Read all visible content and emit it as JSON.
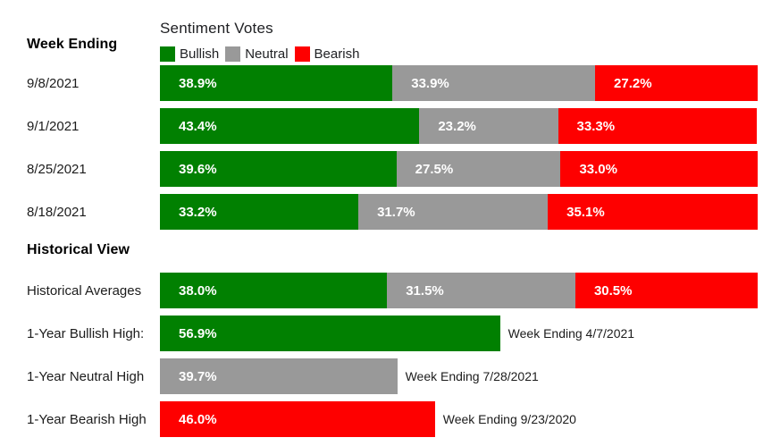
{
  "page": {
    "title": "Sentiment Votes",
    "week_ending_heading": "Week Ending",
    "historical_heading": "Historical View"
  },
  "colors": {
    "bullish": "#018001",
    "neutral": "#999999",
    "bearish": "#fe0000",
    "bar_text": "#ffffff",
    "text": "#1c1c1c"
  },
  "legend": {
    "items": [
      {
        "label": "Bullish",
        "color": "#018001"
      },
      {
        "label": "Neutral",
        "color": "#999999"
      },
      {
        "label": "Bearish",
        "color": "#fe0000"
      }
    ]
  },
  "chart_data": {
    "type": "bar",
    "orientation": "horizontal",
    "stacked": true,
    "title": "Sentiment Votes",
    "series": [
      "Bullish",
      "Neutral",
      "Bearish"
    ],
    "unit": "percent",
    "xlim": [
      0,
      100
    ],
    "legend_position": "top",
    "weekly_rows": [
      {
        "label": "9/8/2021",
        "segments": [
          {
            "name": "bullish",
            "value": 38.9,
            "display": "38.9%"
          },
          {
            "name": "neutral",
            "value": 33.9,
            "display": "33.9%"
          },
          {
            "name": "bearish",
            "value": 27.2,
            "display": "27.2%"
          }
        ]
      },
      {
        "label": "9/1/2021",
        "segments": [
          {
            "name": "bullish",
            "value": 43.4,
            "display": "43.4%"
          },
          {
            "name": "neutral",
            "value": 23.2,
            "display": "23.2%"
          },
          {
            "name": "bearish",
            "value": 33.3,
            "display": "33.3%"
          }
        ]
      },
      {
        "label": "8/25/2021",
        "segments": [
          {
            "name": "bullish",
            "value": 39.6,
            "display": "39.6%"
          },
          {
            "name": "neutral",
            "value": 27.5,
            "display": "27.5%"
          },
          {
            "name": "bearish",
            "value": 33.0,
            "display": "33.0%"
          }
        ]
      },
      {
        "label": "8/18/2021",
        "segments": [
          {
            "name": "bullish",
            "value": 33.2,
            "display": "33.2%"
          },
          {
            "name": "neutral",
            "value": 31.7,
            "display": "31.7%"
          },
          {
            "name": "bearish",
            "value": 35.1,
            "display": "35.1%"
          }
        ]
      }
    ],
    "historical_rows": [
      {
        "label": "Historical Averages",
        "segments": [
          {
            "name": "bullish",
            "value": 38.0,
            "display": "38.0%"
          },
          {
            "name": "neutral",
            "value": 31.5,
            "display": "31.5%"
          },
          {
            "name": "bearish",
            "value": 30.5,
            "display": "30.5%"
          }
        ]
      },
      {
        "label": "1-Year Bullish High:",
        "segments": [
          {
            "name": "bullish",
            "value": 56.9,
            "display": "56.9%"
          }
        ],
        "annotation": "Week Ending 4/7/2021"
      },
      {
        "label": "1-Year Neutral High",
        "segments": [
          {
            "name": "neutral",
            "value": 39.7,
            "display": "39.7%"
          }
        ],
        "annotation": "Week Ending 7/28/2021"
      },
      {
        "label": "1-Year Bearish High",
        "segments": [
          {
            "name": "bearish",
            "value": 46.0,
            "display": "46.0%"
          }
        ],
        "annotation": "Week Ending 9/23/2020"
      }
    ]
  }
}
